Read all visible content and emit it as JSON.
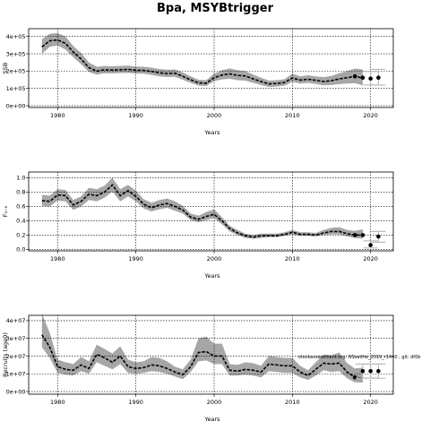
{
  "page_title": "Bpa, MSYBtrigger",
  "watermark": "stockassessment.org: NSsaithe_2019_r1440 , git: df0b",
  "chart_data": [
    {
      "type": "line",
      "ylabel": "SSB",
      "xlabel": "Years",
      "xlim": [
        1976.3,
        2022.9
      ],
      "ylim": [
        -10000,
        445000
      ],
      "xticks": [
        1980,
        1990,
        2000,
        2010,
        2020
      ],
      "yticks": [
        0,
        100000,
        200000,
        300000,
        400000
      ],
      "ytick_labels": [
        "0e+00",
        "1e+05",
        "2e+05",
        "3e+05",
        "4e+05"
      ],
      "x": [
        1978,
        1979,
        1980,
        1981,
        1982,
        1983,
        1984,
        1985,
        1986,
        1987,
        1988,
        1989,
        1990,
        1991,
        1992,
        1993,
        1994,
        1995,
        1996,
        1997,
        1998,
        1999,
        2000,
        2001,
        2002,
        2003,
        2004,
        2005,
        2006,
        2007,
        2008,
        2009,
        2010,
        2011,
        2012,
        2013,
        2014,
        2015,
        2016,
        2017,
        2018,
        2019
      ],
      "values": [
        340000,
        375000,
        380000,
        360000,
        310000,
        270000,
        220000,
        200000,
        208000,
        206000,
        208000,
        210000,
        205000,
        204000,
        198000,
        190000,
        186000,
        188000,
        170000,
        150000,
        132000,
        130000,
        162000,
        177000,
        184000,
        175000,
        172000,
        155000,
        140000,
        126000,
        129000,
        134000,
        160000,
        148000,
        153000,
        147000,
        140000,
        145000,
        155000,
        162000,
        170000,
        160000
      ],
      "lower": [
        300000,
        340000,
        348000,
        325000,
        280000,
        240000,
        195000,
        180000,
        188000,
        187000,
        189000,
        190000,
        186000,
        185000,
        178000,
        170000,
        166000,
        167000,
        150000,
        132000,
        116000,
        114000,
        142000,
        152000,
        156000,
        148000,
        145000,
        132000,
        120000,
        108000,
        111000,
        116000,
        138000,
        128000,
        132000,
        126000,
        118000,
        120000,
        125000,
        128000,
        130000,
        118000
      ],
      "upper": [
        385000,
        415000,
        420000,
        400000,
        345000,
        305000,
        250000,
        225000,
        230000,
        228000,
        230000,
        232000,
        226000,
        225000,
        220000,
        212000,
        208000,
        210000,
        192000,
        170000,
        150000,
        148000,
        185000,
        205000,
        215000,
        205000,
        200000,
        180000,
        162000,
        145000,
        148000,
        153000,
        185000,
        170000,
        176000,
        170000,
        165000,
        172000,
        188000,
        200000,
        215000,
        210000
      ],
      "points": {
        "x": [
          2018,
          2019,
          2020,
          2021
        ],
        "values": [
          170000,
          162000,
          157000,
          162000
        ],
        "lower": [
          null,
          null,
          120000,
          120000
        ],
        "upper": [
          null,
          null,
          198000,
          210000
        ]
      }
    },
    {
      "type": "line",
      "ylabel": "F₃₋₆",
      "xlabel": "Years",
      "xlim": [
        1976.3,
        2022.9
      ],
      "ylim": [
        -0.02,
        1.08
      ],
      "xticks": [
        1980,
        1990,
        2000,
        2010,
        2020
      ],
      "yticks": [
        0.0,
        0.2,
        0.4,
        0.6,
        0.8,
        1.0
      ],
      "ytick_labels": [
        "0.0",
        "0.2",
        "0.4",
        "0.6",
        "0.8",
        "1.0"
      ],
      "x": [
        1978,
        1979,
        1980,
        1981,
        1982,
        1983,
        1984,
        1985,
        1986,
        1987,
        1988,
        1989,
        1990,
        1991,
        1992,
        1993,
        1994,
        1995,
        1996,
        1997,
        1998,
        1999,
        2000,
        2001,
        2002,
        2003,
        2004,
        2005,
        2006,
        2007,
        2008,
        2009,
        2010,
        2011,
        2012,
        2013,
        2014,
        2015,
        2016,
        2017,
        2018,
        2019
      ],
      "values": [
        0.68,
        0.67,
        0.76,
        0.75,
        0.62,
        0.67,
        0.77,
        0.75,
        0.8,
        0.9,
        0.75,
        0.82,
        0.74,
        0.63,
        0.58,
        0.62,
        0.64,
        0.6,
        0.55,
        0.45,
        0.42,
        0.46,
        0.49,
        0.4,
        0.29,
        0.23,
        0.19,
        0.17,
        0.19,
        0.19,
        0.19,
        0.21,
        0.24,
        0.21,
        0.21,
        0.2,
        0.23,
        0.25,
        0.25,
        0.22,
        0.2,
        0.2
      ],
      "lower": [
        0.61,
        0.6,
        0.68,
        0.67,
        0.55,
        0.6,
        0.69,
        0.67,
        0.72,
        0.81,
        0.67,
        0.74,
        0.67,
        0.57,
        0.53,
        0.56,
        0.58,
        0.54,
        0.5,
        0.41,
        0.38,
        0.41,
        0.44,
        0.35,
        0.25,
        0.2,
        0.16,
        0.15,
        0.16,
        0.17,
        0.17,
        0.19,
        0.21,
        0.19,
        0.19,
        0.18,
        0.2,
        0.21,
        0.21,
        0.18,
        0.16,
        0.15
      ],
      "upper": [
        0.76,
        0.75,
        0.84,
        0.83,
        0.69,
        0.74,
        0.86,
        0.84,
        0.89,
        1.0,
        0.84,
        0.9,
        0.82,
        0.7,
        0.65,
        0.69,
        0.71,
        0.67,
        0.61,
        0.5,
        0.47,
        0.52,
        0.56,
        0.45,
        0.33,
        0.27,
        0.22,
        0.2,
        0.22,
        0.22,
        0.22,
        0.24,
        0.27,
        0.24,
        0.24,
        0.23,
        0.27,
        0.3,
        0.31,
        0.27,
        0.26,
        0.28
      ],
      "points": {
        "x": [
          2018,
          2019,
          2020,
          2021
        ],
        "values": [
          0.2,
          0.2,
          0.06,
          0.18
        ],
        "lower": [
          null,
          null,
          0.02,
          0.1
        ],
        "upper": [
          null,
          null,
          0.12,
          0.25
        ]
      }
    },
    {
      "type": "line",
      "ylabel": "Recruits (age0)",
      "xlabel": "Years",
      "xlim": [
        1976.3,
        2022.9
      ],
      "ylim": [
        -1500000,
        43000000
      ],
      "xticks": [
        1980,
        1990,
        2000,
        2010,
        2020
      ],
      "yticks": [
        0,
        10000000,
        20000000,
        30000000,
        40000000
      ],
      "ytick_labels": [
        "0e+00",
        "1e+07",
        "2e+07",
        "3e+07",
        "4e+07"
      ],
      "x": [
        1978,
        1979,
        1980,
        1981,
        1982,
        1983,
        1984,
        1985,
        1986,
        1987,
        1988,
        1989,
        1990,
        1991,
        1992,
        1993,
        1994,
        1995,
        1996,
        1997,
        1998,
        1999,
        2000,
        2001,
        2002,
        2003,
        2004,
        2005,
        2006,
        2007,
        2008,
        2009,
        2010,
        2011,
        2012,
        2013,
        2014,
        2015,
        2016,
        2017,
        2018,
        2019
      ],
      "values": [
        32000000,
        25000000,
        14000000,
        12500000,
        12000000,
        15000000,
        13000000,
        21000000,
        19000000,
        16500000,
        20000000,
        14000000,
        13000000,
        13500000,
        15000000,
        14500000,
        13000000,
        11000000,
        9500000,
        14000000,
        22000000,
        22500000,
        20000000,
        20000000,
        12000000,
        11500000,
        12500000,
        12000000,
        11000000,
        15500000,
        15000000,
        14500000,
        14500000,
        11000000,
        9000000,
        12500000,
        16000000,
        15500000,
        16000000,
        11000000,
        8000000,
        7500000
      ],
      "lower": [
        25000000,
        19000000,
        10500000,
        9500000,
        9000000,
        11500000,
        10000000,
        16500000,
        14500000,
        12500000,
        15500000,
        10500000,
        10000000,
        10500000,
        11500000,
        11000000,
        10000000,
        8500000,
        7000000,
        11000000,
        17000000,
        17500000,
        15500000,
        15500000,
        9000000,
        9000000,
        9500000,
        9000000,
        8000000,
        11500000,
        11000000,
        10500000,
        10500000,
        8000000,
        6500000,
        9000000,
        12000000,
        11000000,
        11500000,
        7500000,
        5200000,
        5000000
      ],
      "upper": [
        44000000,
        33000000,
        18000000,
        16500000,
        15500000,
        19500000,
        17000000,
        26500000,
        24000000,
        21500000,
        25500000,
        18000000,
        16500000,
        17000000,
        19500000,
        19000000,
        17000000,
        14000000,
        12500000,
        18000000,
        30000000,
        31000000,
        27000000,
        27000000,
        15500000,
        15000000,
        16500000,
        16000000,
        14500000,
        20000000,
        19500000,
        19000000,
        19000000,
        14500000,
        12000000,
        16500000,
        21000000,
        20500000,
        22000000,
        16000000,
        13000000,
        13500000
      ],
      "points": {
        "x": [
          2018,
          2019,
          2020,
          2021
        ],
        "values": [
          8000000,
          11500000,
          11500000,
          11500000
        ],
        "lower": [
          null,
          7500000,
          7500000,
          7500000
        ],
        "upper": [
          null,
          15500000,
          15500000,
          15500000
        ]
      }
    }
  ]
}
